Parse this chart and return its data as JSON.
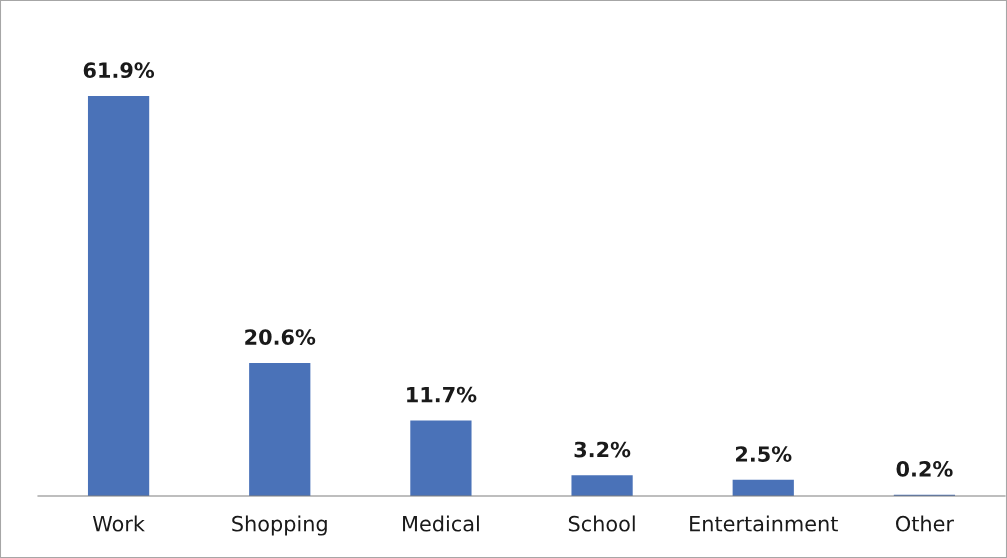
{
  "chart_data": {
    "type": "bar",
    "categories": [
      "Work",
      "Shopping",
      "Medical",
      "School",
      "Entertainment",
      "Other"
    ],
    "values": [
      61.9,
      20.6,
      11.7,
      3.2,
      2.5,
      0.2
    ],
    "value_labels": [
      "61.9%",
      "20.6%",
      "11.7%",
      "3.2%",
      "2.5%",
      "0.2%"
    ],
    "color": "#4a72b8",
    "grid": false,
    "legend": false
  }
}
